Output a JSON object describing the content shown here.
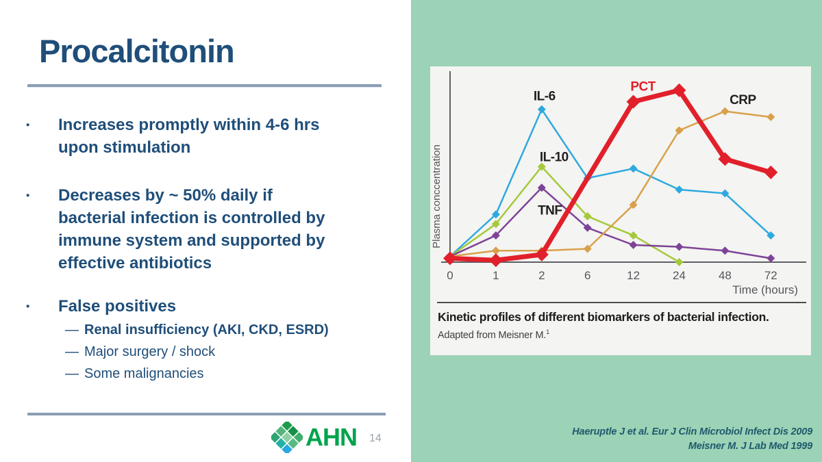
{
  "slide": {
    "title": "Procalcitonin",
    "bullet_marker": "▪",
    "sub_marker": "—",
    "bullets": [
      {
        "text": "Increases promptly within 4-6 hrs\nupon stimulation"
      },
      {
        "text": "Decreases by ~ 50% daily if\nbacterial infection is controlled by\nimmune system and supported by\neffective antibiotics"
      },
      {
        "text": "False positives",
        "sub": [
          {
            "text": "Renal insufficiency (AKI, CKD, ESRD)",
            "bold": true
          },
          {
            "text": "Major surgery / shock",
            "bold": false
          },
          {
            "text": "Some malignancies",
            "bold": false
          }
        ]
      }
    ],
    "footer": {
      "logo_text": "AHN",
      "logo_text_color": "#00a44d",
      "logo_diamond_colors": [
        "#1d9c4c",
        "#15914b",
        "#41ad6c",
        "#53b67c",
        "#8ed0a5",
        "#57ba85",
        "#2da473",
        "#23b1a6",
        "#29a8e0"
      ],
      "page_number": "14"
    },
    "accent_colors": {
      "heading_navy": "#1f4e79",
      "rule_steel_blue": "#8a9db4",
      "panel_green": "#9cd2b6"
    }
  },
  "figure": {
    "caption": "Kinetic profiles of different biomarkers of bacterial infection.",
    "attribution_text": "Adapted from Meisner M.",
    "attribution_ref": "1",
    "citations": [
      "Haeruptle J et al. Eur J Clin Microbiol Infect Dis 2009",
      "Meisner M. J Lab Med 1999"
    ]
  },
  "chart_data": {
    "type": "line",
    "title": "",
    "xlabel": "Time (hours)",
    "ylabel": "Plasma conccentration",
    "categories": [
      0,
      1,
      2,
      6,
      12,
      24,
      48,
      72
    ],
    "ylim": [
      0,
      100
    ],
    "grid": false,
    "legend_position": "inline-labels",
    "axis_color": "#5f6064",
    "series": [
      {
        "name": "IL-6",
        "color": "#2ea9e0",
        "line_width": 2.5,
        "marker_size": 6,
        "points": [
          [
            0,
            3
          ],
          [
            1,
            25
          ],
          [
            2,
            80
          ],
          [
            6,
            44
          ],
          [
            12,
            49
          ],
          [
            24,
            38
          ],
          [
            48,
            36
          ],
          [
            72,
            14
          ]
        ]
      },
      {
        "name": "IL-10",
        "color": "#a5c93b",
        "line_width": 2.5,
        "marker_size": 6,
        "points": [
          [
            0,
            3
          ],
          [
            1,
            20
          ],
          [
            2,
            50
          ],
          [
            6,
            24
          ],
          [
            12,
            14
          ],
          [
            24,
            0
          ]
        ]
      },
      {
        "name": "TNF",
        "color": "#7d4397",
        "line_width": 2.5,
        "marker_size": 6,
        "points": [
          [
            0,
            3
          ],
          [
            1,
            14
          ],
          [
            2,
            39
          ],
          [
            6,
            18
          ],
          [
            12,
            9
          ],
          [
            24,
            8
          ],
          [
            48,
            6
          ],
          [
            72,
            2
          ]
        ]
      },
      {
        "name": "CRP",
        "color": "#d9a04b",
        "line_width": 2.5,
        "marker_size": 6,
        "points": [
          [
            0,
            3
          ],
          [
            1,
            6
          ],
          [
            2,
            6
          ],
          [
            6,
            7
          ],
          [
            12,
            30
          ],
          [
            24,
            69
          ],
          [
            48,
            79
          ],
          [
            72,
            76
          ]
        ]
      },
      {
        "name": "PCT",
        "color": "#e1202b",
        "line_width": 7,
        "marker_size": 10,
        "points": [
          [
            0,
            2
          ],
          [
            1,
            1
          ],
          [
            2,
            4
          ],
          [
            12,
            84
          ],
          [
            24,
            90
          ],
          [
            48,
            54
          ],
          [
            72,
            47
          ]
        ]
      }
    ],
    "labels": [
      {
        "text": "IL-6",
        "t": 2,
        "v": 87,
        "dx": 4,
        "color": "#231f20"
      },
      {
        "text": "IL-10",
        "t": 2,
        "v": 55,
        "dx": 18,
        "color": "#231f20"
      },
      {
        "text": "TNF",
        "t": 2,
        "v": 27,
        "dx": 12,
        "color": "#231f20"
      },
      {
        "text": "PCT",
        "t": 12,
        "v": 92,
        "dx": 14,
        "color": "#e1202b"
      },
      {
        "text": "CRP",
        "t": 48,
        "v": 85,
        "dx": 26,
        "color": "#231f20"
      }
    ]
  }
}
